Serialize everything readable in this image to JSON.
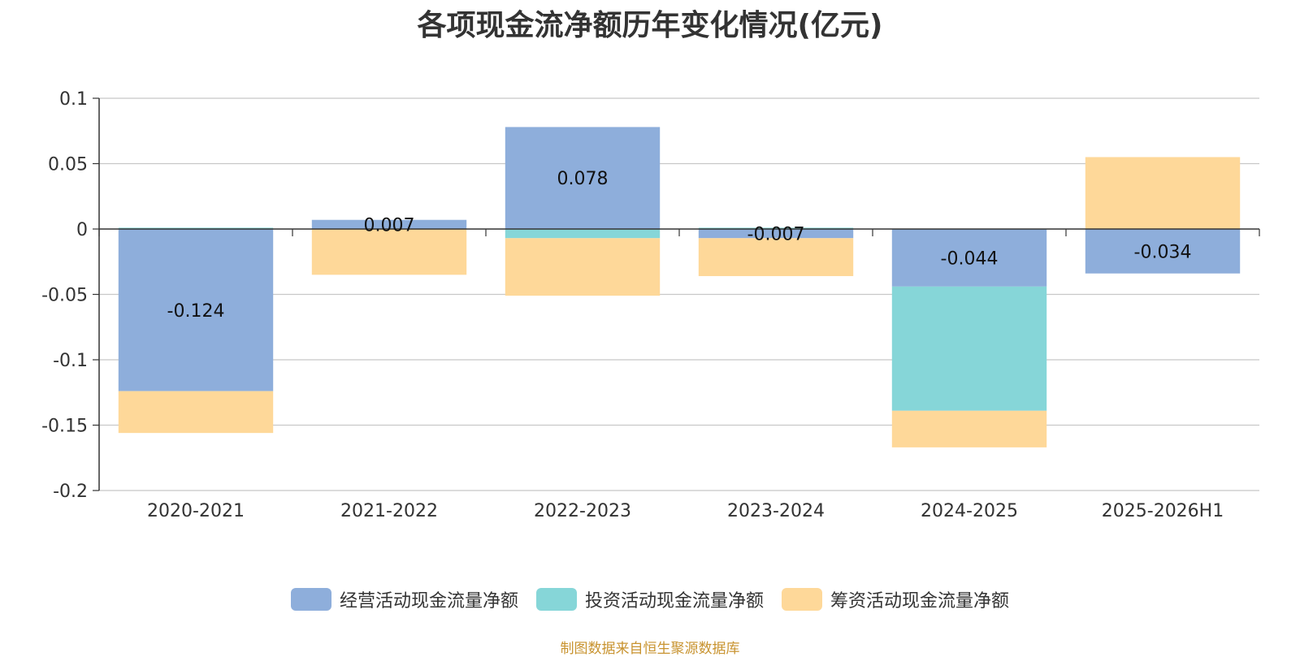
{
  "chart_data": {
    "type": "bar",
    "stacked": true,
    "title": "各项现金流净额历年变化情况(亿元)",
    "categories": [
      "2020-2021",
      "2021-2022",
      "2022-2023",
      "2023-2024",
      "2024-2025",
      "2025-2026H1"
    ],
    "series": [
      {
        "name": "经营活动现金流量净额",
        "color": "#8eaedb",
        "values": [
          -0.124,
          0.007,
          0.078,
          -0.007,
          -0.044,
          -0.034
        ]
      },
      {
        "name": "投资活动现金流量净额",
        "color": "#86d6d8",
        "values": [
          0.001,
          0.0,
          -0.007,
          0.001,
          -0.095,
          0.0
        ]
      },
      {
        "name": "筹资活动现金流量净额",
        "color": "#fed899",
        "values": [
          -0.032,
          -0.035,
          -0.044,
          -0.029,
          -0.028,
          0.055
        ]
      }
    ],
    "data_labels": [
      "-0.124",
      "0.007",
      "0.078",
      "-0.007",
      "-0.044",
      "-0.034"
    ],
    "ylim": [
      -0.2,
      0.1
    ],
    "yticks": [
      0.1,
      0.05,
      0,
      -0.05,
      -0.1,
      -0.15,
      -0.2
    ],
    "ytick_labels": [
      "0.1",
      "0.05",
      "0",
      "-0.05",
      "-0.1",
      "-0.15",
      "-0.2"
    ],
    "grid": true,
    "legend_position": "bottom"
  },
  "source_note": "制图数据来自恒生聚源数据库"
}
